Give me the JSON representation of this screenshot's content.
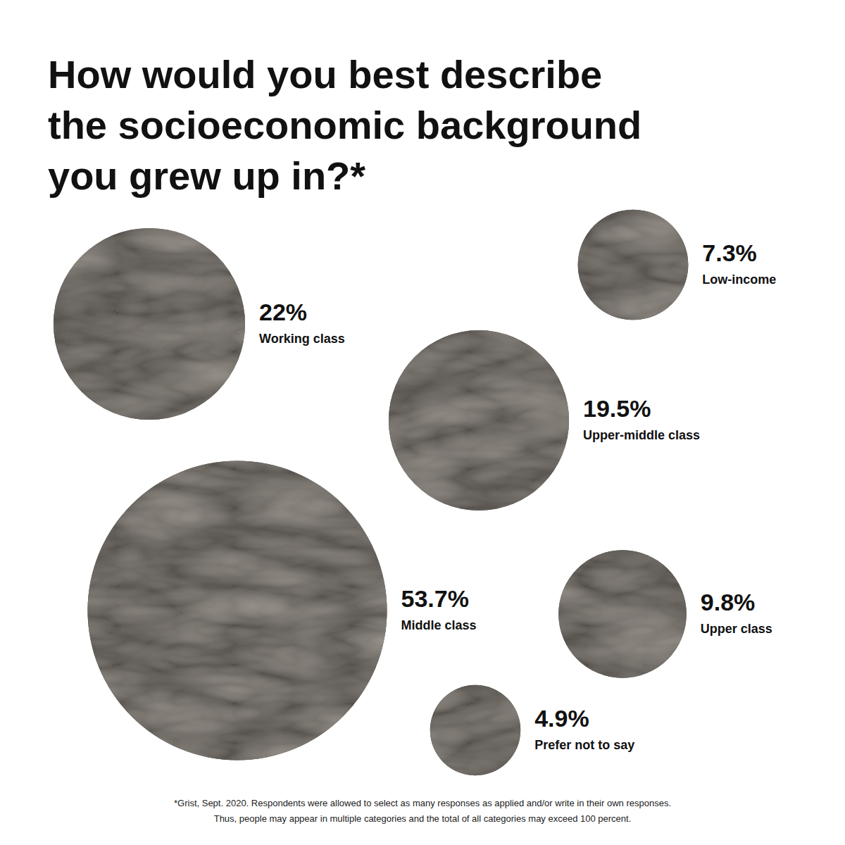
{
  "chart_data": {
    "type": "bubble",
    "title": "How would you best describe\nthe socioeconomic background\nyou grew up in?*",
    "categories": [
      "Working class",
      "Low-income",
      "Upper-middle class",
      "Middle class",
      "Upper class",
      "Prefer not to say"
    ],
    "values": [
      22,
      7.3,
      19.5,
      53.7,
      9.8,
      4.9
    ],
    "value_labels": [
      "22%",
      "7.3%",
      "19.5%",
      "53.7%",
      "9.8%",
      "4.9%"
    ],
    "data_labels": true,
    "color": "#2f2b27",
    "footnote": "*Grist, Sept. 2020. Respondents were allowed to select as many responses as applied and/or write in their own responses.\nThus, people may appear in multiple categories and the total of all categories may exceed 100 percent."
  }
}
